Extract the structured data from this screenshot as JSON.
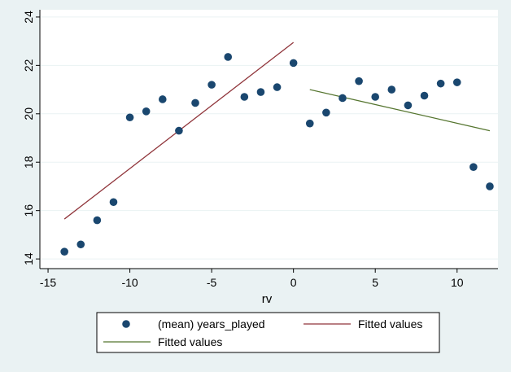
{
  "chart_data": {
    "type": "scatter",
    "title": "",
    "xlabel": "rv",
    "ylabel": "",
    "xlim": [
      -15.5,
      12.5
    ],
    "ylim": [
      13.6,
      24.3
    ],
    "xticks": [
      -15,
      -10,
      -5,
      0,
      5,
      10
    ],
    "yticks": [
      14,
      16,
      18,
      20,
      22,
      24
    ],
    "grid": "horizontal",
    "legend_position": "bottom",
    "series": [
      {
        "name": "(mean) years_played",
        "kind": "scatter",
        "color": "#1a476f",
        "x": [
          -14,
          -13,
          -12,
          -11,
          -10,
          -9,
          -8,
          -7,
          -6,
          -5,
          -4,
          -3,
          -2,
          -1,
          0,
          1,
          2,
          3,
          4,
          5,
          6,
          7,
          8,
          9,
          10,
          11,
          12
        ],
        "y": [
          14.3,
          14.6,
          15.6,
          16.35,
          19.85,
          20.1,
          20.6,
          19.3,
          20.45,
          21.2,
          22.35,
          20.7,
          20.9,
          21.1,
          22.1,
          19.6,
          20.05,
          20.65,
          21.35,
          20.7,
          21.0,
          20.35,
          20.75,
          21.25,
          21.3,
          17.8,
          17.0
        ]
      },
      {
        "name": "Fitted values",
        "kind": "line",
        "color": "#90353b",
        "x": [
          -14,
          0
        ],
        "y": [
          15.65,
          22.95
        ]
      },
      {
        "name": "Fitted values",
        "kind": "line",
        "color": "#55752f",
        "x": [
          1,
          12
        ],
        "y": [
          21.0,
          19.3
        ]
      }
    ]
  }
}
